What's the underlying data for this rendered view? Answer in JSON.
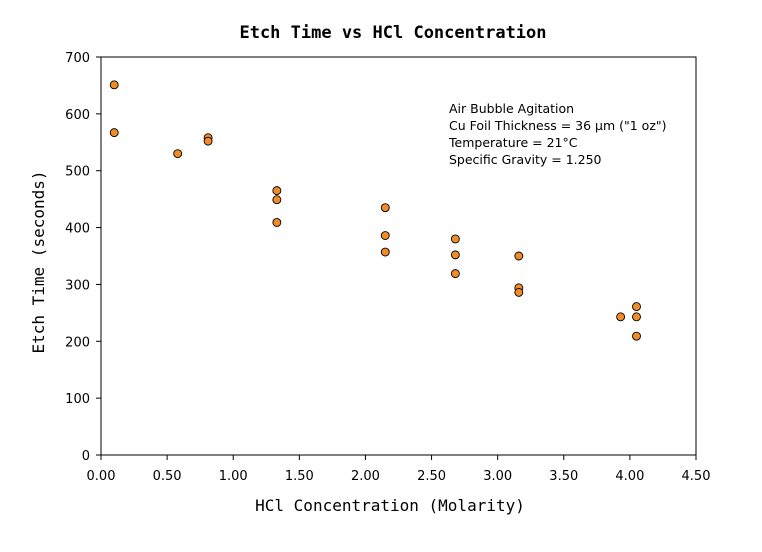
{
  "chart_data": {
    "type": "scatter",
    "title": "Etch Time vs HCl Concentration",
    "xlabel": "HCl Concentration (Molarity)",
    "ylabel": "Etch Time (seconds)",
    "xlim": [
      0,
      4.5
    ],
    "ylim": [
      0,
      700
    ],
    "xticks": [
      "0.00",
      "0.50",
      "1.00",
      "1.50",
      "2.00",
      "2.50",
      "3.00",
      "3.50",
      "4.00",
      "4.50"
    ],
    "yticks": [
      "0",
      "100",
      "200",
      "300",
      "400",
      "500",
      "600",
      "700"
    ],
    "grid": false,
    "marker_color": "#F28C28",
    "annotations": [
      "Air Bubble Agitation",
      "Cu Foil Thickness = 36 µm (\"1 oz\")",
      "Temperature = 21°C",
      "Specific Gravity = 1.250"
    ],
    "series": [
      {
        "name": "Etch Time",
        "points": [
          {
            "x": 0.1,
            "y": 651
          },
          {
            "x": 0.1,
            "y": 567
          },
          {
            "x": 0.58,
            "y": 530
          },
          {
            "x": 0.81,
            "y": 558
          },
          {
            "x": 0.81,
            "y": 552
          },
          {
            "x": 1.33,
            "y": 465
          },
          {
            "x": 1.33,
            "y": 449
          },
          {
            "x": 1.33,
            "y": 409
          },
          {
            "x": 2.15,
            "y": 435
          },
          {
            "x": 2.15,
            "y": 386
          },
          {
            "x": 2.15,
            "y": 357
          },
          {
            "x": 2.68,
            "y": 380
          },
          {
            "x": 2.68,
            "y": 352
          },
          {
            "x": 2.68,
            "y": 319
          },
          {
            "x": 3.16,
            "y": 350
          },
          {
            "x": 3.16,
            "y": 294
          },
          {
            "x": 3.16,
            "y": 286
          },
          {
            "x": 3.93,
            "y": 243
          },
          {
            "x": 4.05,
            "y": 261
          },
          {
            "x": 4.05,
            "y": 243
          },
          {
            "x": 4.05,
            "y": 209
          }
        ]
      }
    ]
  }
}
